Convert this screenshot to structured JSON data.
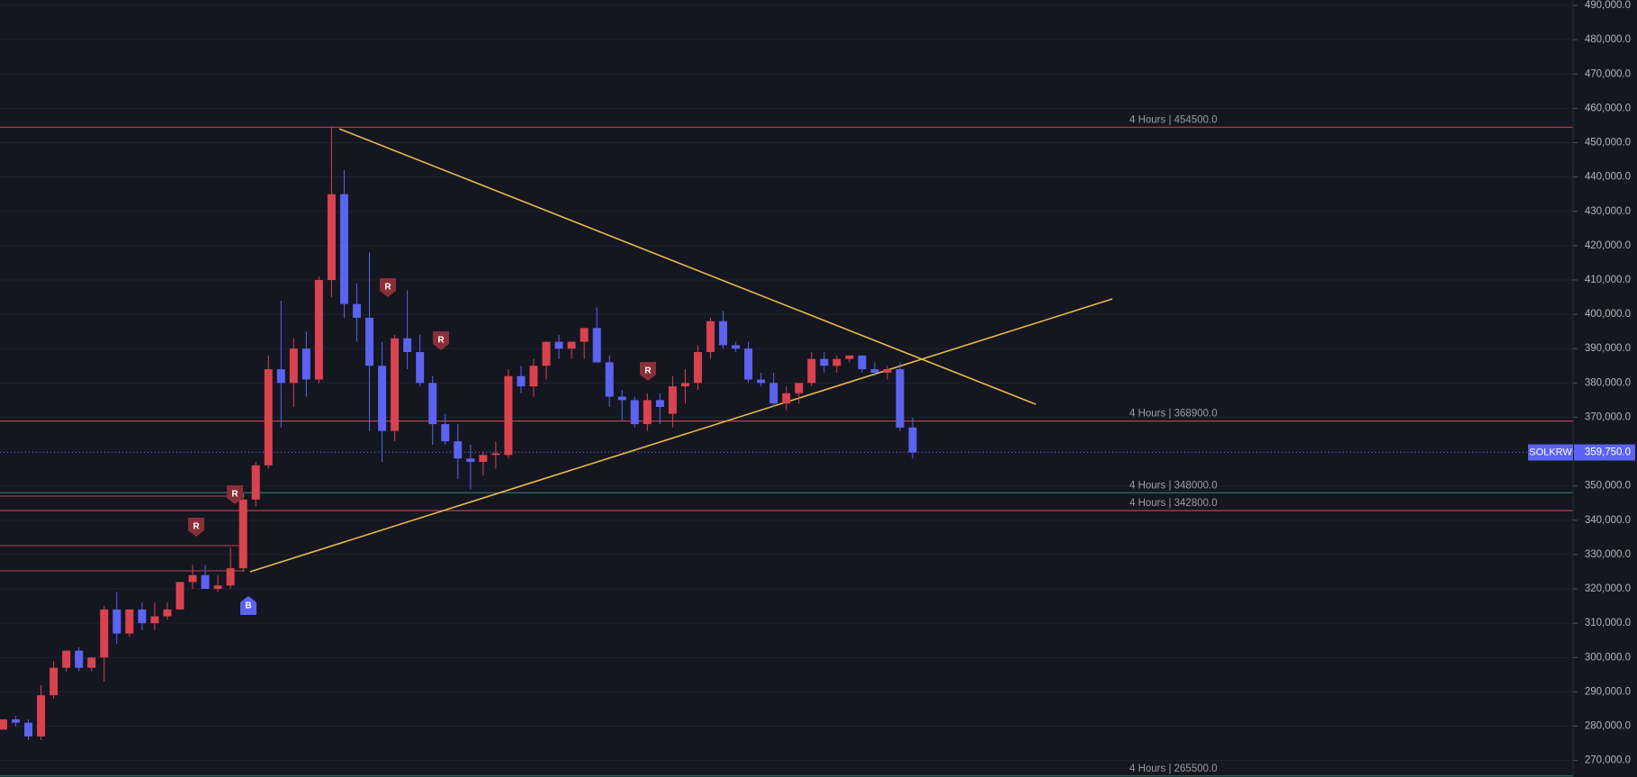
{
  "chart_data": {
    "type": "candlestick",
    "symbol": "SOLKRW",
    "last_price": {
      "value": 359750,
      "label": "359,750.0"
    },
    "up_color": "#d9434f",
    "down_color": "#5b63f0",
    "open": [
      279000,
      282000,
      281000,
      277000,
      289000,
      297000,
      302000,
      297000,
      300000,
      314000,
      307000,
      314000,
      310000,
      312000,
      314000,
      322000,
      324000,
      320000,
      321000,
      326000,
      346000,
      356000,
      384000,
      380000,
      390000,
      381000,
      410000,
      435000,
      403000,
      399000,
      385000,
      366000,
      393000,
      389000,
      380000,
      368000,
      363000,
      358000,
      357000,
      359000,
      359000,
      382000,
      379000,
      385000,
      392000,
      390000,
      392000,
      396000,
      386000,
      376000,
      375000,
      368000,
      375000,
      371000,
      379000,
      380000,
      389000,
      398000,
      391000,
      390000,
      381000,
      380000,
      374000,
      377000,
      380000,
      387000,
      385000,
      387000,
      388000,
      384000,
      383000,
      384000,
      367000
    ],
    "high": [
      282000,
      283000,
      282000,
      292000,
      299000,
      302000,
      303000,
      300000,
      315000,
      319000,
      314000,
      316000,
      316000,
      316000,
      322000,
      327000,
      327000,
      324000,
      332000,
      348000,
      357000,
      388000,
      404000,
      393000,
      395000,
      411000,
      454500,
      442000,
      409000,
      418000,
      392000,
      394000,
      407000,
      394000,
      382000,
      371000,
      368000,
      362000,
      360000,
      363000,
      384000,
      385000,
      387000,
      392000,
      394000,
      392000,
      396000,
      402000,
      388000,
      378000,
      376000,
      377000,
      377000,
      382000,
      384000,
      391000,
      399000,
      401000,
      392000,
      392000,
      383000,
      383000,
      379000,
      380000,
      389000,
      389000,
      388000,
      388000,
      388000,
      386000,
      385000,
      386000,
      370000
    ],
    "low": [
      279000,
      280000,
      276000,
      276000,
      288000,
      296000,
      296000,
      296000,
      293000,
      304000,
      306000,
      308000,
      308000,
      311000,
      314000,
      320000,
      320000,
      319000,
      320000,
      325000,
      344000,
      355000,
      367000,
      373000,
      376000,
      380000,
      405000,
      399000,
      392000,
      366000,
      357000,
      363000,
      384000,
      379000,
      362000,
      362000,
      352000,
      349000,
      353000,
      355000,
      358000,
      377000,
      376000,
      381000,
      387000,
      387000,
      387000,
      386000,
      373000,
      369000,
      367000,
      366000,
      368000,
      367000,
      374000,
      378000,
      387000,
      390000,
      389000,
      380000,
      379000,
      373000,
      372000,
      374000,
      379000,
      383000,
      383000,
      386000,
      383000,
      382000,
      381000,
      366000,
      358000
    ],
    "close": [
      282000,
      281000,
      277000,
      289000,
      297000,
      302000,
      297000,
      300000,
      314000,
      307000,
      314000,
      310000,
      312000,
      314000,
      322000,
      324000,
      320000,
      321000,
      326000,
      346000,
      356000,
      384000,
      380000,
      390000,
      381000,
      410000,
      435000,
      403000,
      399000,
      385000,
      366000,
      393000,
      389000,
      380000,
      368000,
      363000,
      358000,
      357000,
      359000,
      359500,
      382000,
      379000,
      385000,
      392000,
      390000,
      392000,
      396000,
      386000,
      376000,
      375000,
      368000,
      375000,
      373000,
      379000,
      380000,
      389000,
      398000,
      391000,
      390000,
      381000,
      380000,
      374000,
      377000,
      380000,
      387000,
      385000,
      387000,
      388000,
      384000,
      383000,
      384000,
      367000,
      359750
    ],
    "levels": [
      {
        "label": "4 Hours | 454500.0",
        "value": 454500,
        "color": "#b2454d"
      },
      {
        "label": "4 Hours | 368900.0",
        "value": 368900,
        "color": "#b2454d"
      },
      {
        "label": "4 Hours | 348000.0",
        "value": 348000,
        "color": "#2f7d6d"
      },
      {
        "label": "4 Hours | 342800.0",
        "value": 342800,
        "color": "#b2454d"
      },
      {
        "label": "4 Hours | 265500.0",
        "value": 265500,
        "color": "#2f7d6d"
      }
    ],
    "markers": [
      {
        "label": "R"
      },
      {
        "label": "R"
      },
      {
        "label": "R"
      },
      {
        "label": "R"
      },
      {
        "label": "R"
      },
      {
        "label": "B"
      }
    ],
    "ylim": [
      265190,
      491574
    ],
    "yticks": [
      {
        "value": 270000,
        "label": "270,000.0"
      },
      {
        "value": 280000,
        "label": "280,000.0"
      },
      {
        "value": 290000,
        "label": "290,000.0"
      },
      {
        "value": 300000,
        "label": "300,000.0"
      },
      {
        "value": 310000,
        "label": "310,000.0"
      },
      {
        "value": 320000,
        "label": "320,000.0"
      },
      {
        "value": 330000,
        "label": "330,000.0"
      },
      {
        "value": 340000,
        "label": "340,000.0"
      },
      {
        "value": 350000,
        "label": "350,000.0"
      },
      {
        "value": 360000,
        "label": "360,000.0"
      },
      {
        "value": 370000,
        "label": "370,000.0"
      },
      {
        "value": 380000,
        "label": "380,000.0"
      },
      {
        "value": 390000,
        "label": "390,000.0"
      },
      {
        "value": 400000,
        "label": "400,000.0"
      },
      {
        "value": 410000,
        "label": "410,000.0"
      },
      {
        "value": 420000,
        "label": "420,000.0"
      },
      {
        "value": 430000,
        "label": "430,000.0"
      },
      {
        "value": 440000,
        "label": "440,000.0"
      },
      {
        "value": 450000,
        "label": "450,000.0"
      },
      {
        "value": 460000,
        "label": "460,000.0"
      },
      {
        "value": 470000,
        "label": "470,000.0"
      },
      {
        "value": 480000,
        "label": "480,000.0"
      },
      {
        "value": 490000,
        "label": "490,000.0"
      }
    ],
    "grid": true
  }
}
